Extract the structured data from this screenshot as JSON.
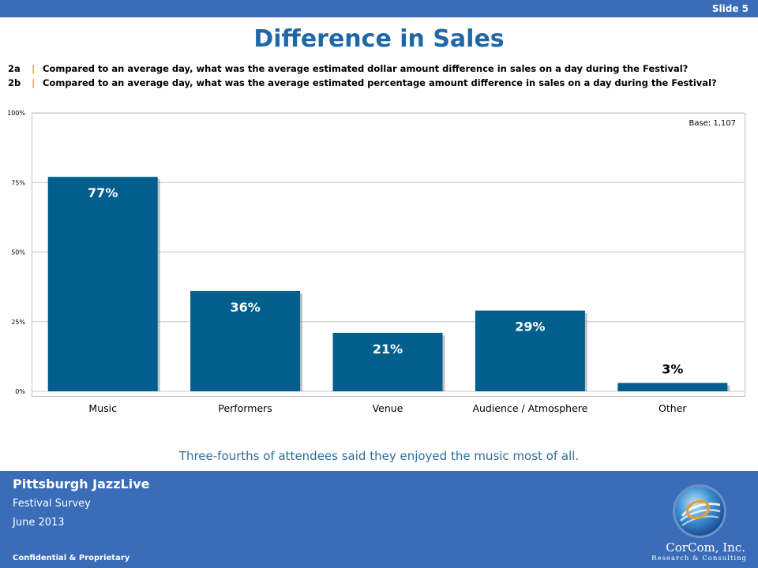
{
  "header": {
    "slide_label": "Slide 5"
  },
  "title": "Difference in Sales",
  "questions": [
    {
      "id": "2a",
      "sep": "|",
      "text": "Compared to an average day, what was the average estimated dollar amount difference in sales on a day during the Festival?"
    },
    {
      "id": "2b",
      "sep": "|",
      "text": "Compared to an average day, what was the average estimated percentage amount difference in sales on a day during the Festival?"
    }
  ],
  "base_label": "Base: 1,107",
  "chart_data": {
    "type": "bar",
    "categories": [
      "Music",
      "Performers",
      "Venue",
      "Audience / Atmosphere",
      "Other"
    ],
    "values": [
      77,
      36,
      21,
      29,
      3
    ],
    "value_labels": [
      "77%",
      "36%",
      "21%",
      "29%",
      "3%"
    ],
    "ylim": [
      0,
      100
    ],
    "yticks": [
      0,
      25,
      50,
      75,
      100
    ],
    "ytick_labels": [
      "0%",
      "25%",
      "50%",
      "75%",
      "100%"
    ],
    "grid": true,
    "bar_color": "#005f8c",
    "title": "",
    "xlabel": "",
    "ylabel": ""
  },
  "caption": "Three-fourths  of attendees said they enjoyed the music most of all.",
  "footer": {
    "title": "Pittsburgh JazzLive",
    "subtitle1": "Festival Survey",
    "subtitle2": "June 2013",
    "confidential": "Confidential & Proprietary",
    "brand_name": "CorCom, Inc.",
    "brand_tagline": "Research & Consulting"
  },
  "colors": {
    "header_bar": "#3a6cb7",
    "title": "#2067a7",
    "separator": "#e0a21a",
    "caption": "#2a6f9d"
  }
}
